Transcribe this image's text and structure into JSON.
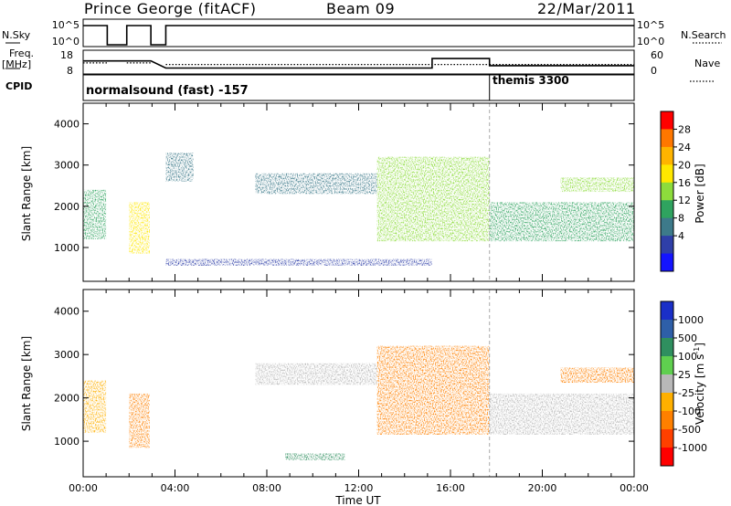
{
  "header": {
    "station": "Prince George (fitACF)",
    "beam": "Beam 09",
    "date": "22/Mar/2011"
  },
  "panels": {
    "nsky_label": "N.Sky",
    "nsearch_label": "N.Search",
    "freq_label_1": "Freq.",
    "freq_label_2": "[MHz]",
    "nave_label": "Nave",
    "cpid_label": "CPID",
    "cpid_1": "normalsound (fast) -157",
    "cpid_2": "themis 3300",
    "nsky_ticks": [
      "10^5",
      "10^0"
    ],
    "nsearch_ticks": [
      "10^5",
      "10^0"
    ],
    "freq_ticks": [
      "18",
      "8"
    ],
    "nave_ticks": [
      "60",
      "0"
    ]
  },
  "colorbars": {
    "power": {
      "label": "Power [dB]",
      "ticks": [
        "28",
        "24",
        "20",
        "16",
        "12",
        "8",
        "4"
      ],
      "colors": [
        "#ff0000",
        "#ff7700",
        "#ffb400",
        "#ffe800",
        "#8ddc3c",
        "#2fa35f",
        "#3d7a8a",
        "#2f3fa8",
        "#1414ff"
      ]
    },
    "velocity": {
      "label": "Velocity [m s",
      "label_sup": "-1",
      "label_end": "]",
      "ticks": [
        "1000",
        "500",
        "100",
        "25",
        "-25",
        "-100",
        "-500",
        "-1000"
      ],
      "colors": [
        "#1a2fc8",
        "#2e5fa8",
        "#2f8f5f",
        "#5fcf4f",
        "#b8b8b8",
        "#ffb000",
        "#ff8000",
        "#ff4000",
        "#ff0000"
      ]
    }
  },
  "chart_data": {
    "type": "heatmap",
    "xlabel": "Time UT",
    "ylabel": "Slant Range [km]",
    "x_ticks": [
      "00:00",
      "04:00",
      "08:00",
      "12:00",
      "16:00",
      "20:00",
      "00:00"
    ],
    "y_ticks": [
      "1000",
      "2000",
      "3000",
      "4000"
    ],
    "xlim": [
      0,
      24
    ],
    "ylim": [
      180,
      4500
    ],
    "x_unit": "hours UT",
    "data_gaps": [
      [
        1.05,
        1.9
      ],
      [
        2.95,
        3.6
      ]
    ],
    "cpid_change_hours": 17.7,
    "frequency_segments": [
      {
        "from": 0.0,
        "to": 1.05,
        "mhz": 13.5
      },
      {
        "from": 1.9,
        "to": 2.95,
        "mhz": 13.5
      },
      {
        "from": 3.6,
        "to": 15.2,
        "mhz": 10.5
      },
      {
        "from": 15.2,
        "to": 17.7,
        "mhz": 14.5
      },
      {
        "from": 17.7,
        "to": 24.0,
        "mhz": 11.5
      }
    ],
    "nave_segments": [
      {
        "from": 0.0,
        "to": 1.05,
        "value": 28
      },
      {
        "from": 1.9,
        "to": 2.95,
        "value": 28
      },
      {
        "from": 3.6,
        "to": 17.7,
        "value": 24
      },
      {
        "from": 17.7,
        "to": 24.0,
        "value": 24
      }
    ],
    "power_regions": [
      {
        "t0": 0.0,
        "t1": 1.0,
        "r0": 1200,
        "r1": 2400,
        "value": 14
      },
      {
        "t0": 2.0,
        "t1": 2.9,
        "r0": 850,
        "r1": 2100,
        "value": 22
      },
      {
        "t0": 3.6,
        "t1": 4.8,
        "r0": 2600,
        "r1": 3300,
        "value": 8
      },
      {
        "t0": 7.5,
        "t1": 12.8,
        "r0": 2300,
        "r1": 2800,
        "value": 10
      },
      {
        "t0": 12.8,
        "t1": 17.7,
        "r0": 1150,
        "r1": 3200,
        "value": 18
      },
      {
        "t0": 17.7,
        "t1": 24.0,
        "r0": 1150,
        "r1": 2100,
        "value": 12
      },
      {
        "t0": 20.8,
        "t1": 24.0,
        "r0": 2350,
        "r1": 2700,
        "value": 16
      },
      {
        "t0": 3.6,
        "t1": 15.2,
        "r0": 560,
        "r1": 720,
        "value": 6
      }
    ],
    "velocity_regions": [
      {
        "t0": 0.0,
        "t1": 1.0,
        "r0": 1200,
        "r1": 2400,
        "value": -100
      },
      {
        "t0": 2.0,
        "t1": 2.9,
        "r0": 850,
        "r1": 2100,
        "value": -500
      },
      {
        "t0": 7.5,
        "t1": 12.8,
        "r0": 2300,
        "r1": 2800,
        "value": 0
      },
      {
        "t0": 8.8,
        "t1": 11.4,
        "r0": 560,
        "r1": 720,
        "value": 100
      },
      {
        "t0": 12.8,
        "t1": 17.7,
        "r0": 1150,
        "r1": 3200,
        "value": -300
      },
      {
        "t0": 17.7,
        "t1": 24.0,
        "r0": 1150,
        "r1": 2100,
        "value": 0
      },
      {
        "t0": 20.8,
        "t1": 24.0,
        "r0": 2350,
        "r1": 2700,
        "value": -500
      }
    ]
  }
}
